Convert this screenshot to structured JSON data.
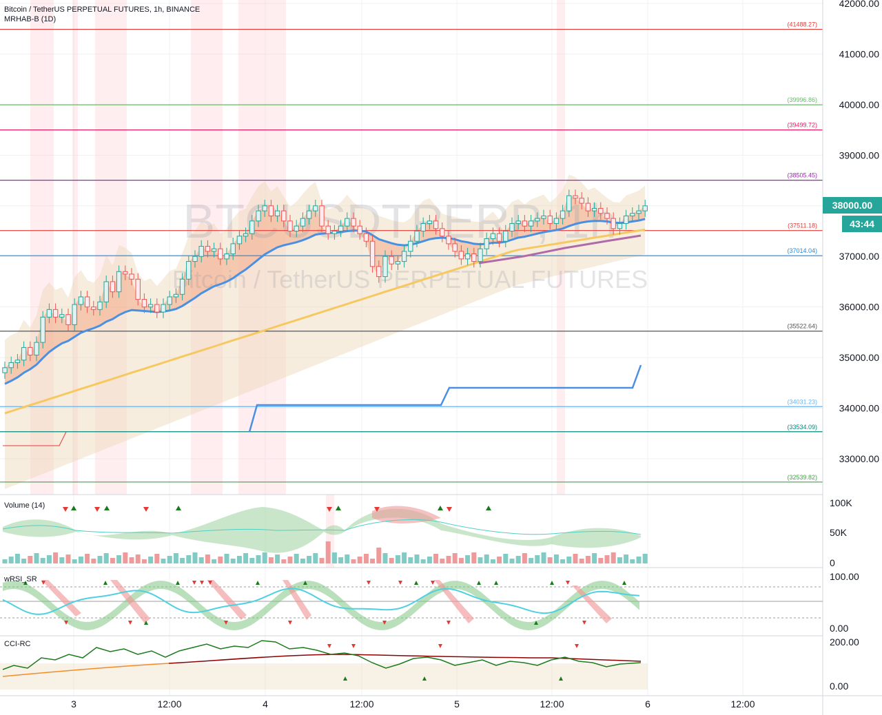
{
  "header": {
    "title": "Bitcoin / TetherUS PERPETUAL FUTURES, 1h, BINANCE",
    "indicator": "MRHAB-B (1D)"
  },
  "watermark": {
    "symbol": "BTCUSDTPERP, 1h",
    "description": "Bitcoin / TetherUS PERPETUAL FUTURES"
  },
  "price_tag": {
    "price": "38000.00",
    "countdown": "43:44",
    "color": "#26a69a"
  },
  "panes": {
    "volume": {
      "label": "Volume (14)",
      "ticks": [
        "100K",
        "50K",
        "0"
      ]
    },
    "rsi": {
      "label": "wRSI_SR",
      "ticks": [
        "100.00",
        "0.00"
      ]
    },
    "cci": {
      "label": "CCI-RC",
      "ticks": [
        "200.00",
        "0.00"
      ]
    }
  },
  "chart_data": {
    "type": "candlestick",
    "title": "Bitcoin / TetherUS PERPETUAL FUTURES, 1h, BINANCE",
    "yticks": [
      "42000.00",
      "41000.00",
      "40000.00",
      "39000.00",
      "38000.00",
      "37000.00",
      "36000.00",
      "35000.00",
      "34000.00",
      "33000.00"
    ],
    "ylim": [
      32300,
      42050
    ],
    "xticks": [
      "3",
      "12:00",
      "4",
      "12:00",
      "5",
      "12:00",
      "6",
      "12:00"
    ],
    "levels": [
      {
        "value": 41488.27,
        "label": "(41488.27)",
        "color": "#e53935"
      },
      {
        "value": 39996.86,
        "label": "(39996.86)",
        "color": "#66bb6a"
      },
      {
        "value": 39499.72,
        "label": "(39499.72)",
        "color": "#e91e63"
      },
      {
        "value": 38505.45,
        "label": "(38505.45)",
        "color": "#9c27b0"
      },
      {
        "value": 37511.18,
        "label": "(37511.18)",
        "color": "#e53935"
      },
      {
        "value": 37014.04,
        "label": "(37014.04)",
        "color": "#1e88e5"
      },
      {
        "value": 35522.64,
        "label": "(35522.64)",
        "color": "#555555"
      },
      {
        "value": 34031.23,
        "label": "(34031.23)",
        "color": "#64b5f6"
      },
      {
        "value": 33534.09,
        "label": "(33534.09)",
        "color": "#00897b"
      },
      {
        "value": 32539.82,
        "label": "(32539.82)",
        "color": "#43a047"
      }
    ],
    "close": [
      34800,
      34900,
      34950,
      35200,
      35050,
      35300,
      35800,
      35950,
      35800,
      35850,
      35650,
      36050,
      36200,
      36000,
      35950,
      36100,
      36500,
      36300,
      36700,
      36650,
      36550,
      36150,
      36000,
      36050,
      35900,
      36050,
      36200,
      36250,
      36550,
      36900,
      37000,
      37200,
      37100,
      37150,
      36950,
      37050,
      37250,
      37400,
      37450,
      37700,
      37900,
      38000,
      37800,
      37900,
      37700,
      37500,
      37600,
      37750,
      37900,
      38000,
      37600,
      37450,
      37500,
      37600,
      37750,
      37600,
      37450,
      37300,
      36800,
      36600,
      37000,
      36850,
      36900,
      37100,
      37300,
      37500,
      37650,
      37700,
      37550,
      37400,
      37250,
      37100,
      36950,
      37050,
      36900,
      37150,
      37350,
      37450,
      37300,
      37500,
      37650,
      37700,
      37600,
      37700,
      37750,
      37800,
      37650,
      37750,
      37900,
      38200,
      38150,
      38050,
      37900,
      37950,
      37850,
      37750,
      37550,
      37650,
      37800,
      37850,
      37900,
      38000
    ],
    "ema_fast": [
      34480,
      34540,
      34610,
      34700,
      34770,
      34860,
      34990,
      35110,
      35200,
      35280,
      35330,
      35410,
      35490,
      35540,
      35580,
      35630,
      35710,
      35760,
      35840,
      35900,
      35940,
      35930,
      35920,
      35910,
      35900,
      35910,
      35930,
      35960,
      36020,
      36100,
      36180,
      36270,
      36340,
      36410,
      36450,
      36500,
      36570,
      36660,
      36740,
      36840,
      36940,
      37040,
      37110,
      37180,
      37220,
      37250,
      37280,
      37320,
      37370,
      37430,
      37450,
      37460,
      37470,
      37480,
      37500,
      37510,
      37510,
      37490,
      37420,
      37340,
      37300,
      37260,
      37230,
      37220,
      37230,
      37260,
      37300,
      37340,
      37360,
      37370,
      37360,
      37340,
      37300,
      37280,
      37250,
      37240,
      37250,
      37270,
      37270,
      37290,
      37330,
      37370,
      37390,
      37420,
      37450,
      37480,
      37500,
      37520,
      37550,
      37600,
      37640,
      37670,
      37690,
      37700,
      37700,
      37690,
      37670,
      37660,
      37670,
      37690,
      37710,
      37740
    ],
    "ema_slow": [
      33900,
      33940,
      33980,
      34020,
      34060,
      34100,
      34140,
      34180,
      34220,
      34260,
      34300,
      34340,
      34380,
      34420,
      34460,
      34500,
      34540,
      34580,
      34620,
      34660,
      34700,
      34740,
      34780,
      34820,
      34860,
      34900,
      34940,
      34980,
      35020,
      35060,
      35100,
      35140,
      35180,
      35220,
      35260,
      35300,
      35340,
      35380,
      35420,
      35460,
      35500,
      35540,
      35580,
      35620,
      35660,
      35700,
      35740,
      35780,
      35820,
      35860,
      35900,
      35940,
      35980,
      36020,
      36060,
      36100,
      36140,
      36180,
      36220,
      36260,
      36300,
      36340,
      36380,
      36420,
      36460,
      36500,
      36540,
      36580,
      36620,
      36660,
      36700,
      36740,
      36780,
      36820,
      36860,
      36900,
      36940,
      36980,
      37020,
      37060,
      37100,
      37130,
      37150,
      37170,
      37190,
      37210,
      37230,
      37250,
      37270,
      37290,
      37310,
      37330,
      37350,
      37370,
      37390,
      37410,
      37430,
      37450,
      37470,
      37490,
      37510,
      37530
    ],
    "step_line": [
      [
        0,
        33250
      ],
      [
        21,
        33250
      ],
      [
        24,
        33500
      ],
      [
        25,
        33500
      ],
      [
        90,
        33500
      ],
      [
        92,
        34030
      ],
      [
        160,
        34030
      ],
      [
        163,
        34380
      ],
      [
        235,
        34380
      ],
      [
        238,
        34850
      ]
    ]
  }
}
